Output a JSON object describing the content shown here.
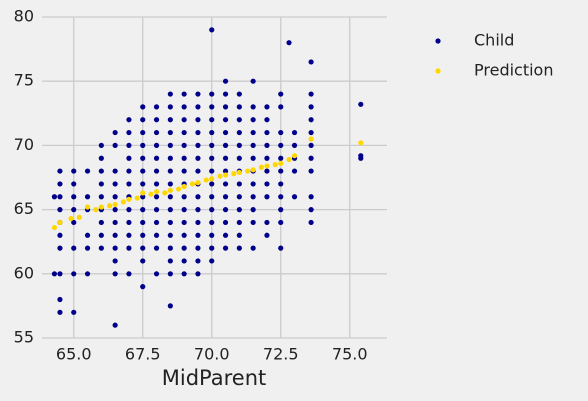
{
  "chart_data": {
    "type": "scatter",
    "xlabel": "MidParent",
    "xlim": [
      63.85,
      76.35
    ],
    "ylim": [
      55,
      80
    ],
    "xticks": [
      {
        "value": 65,
        "label": "65.0"
      },
      {
        "value": 67.5,
        "label": "67.5"
      },
      {
        "value": 70,
        "label": "70.0"
      },
      {
        "value": 72.5,
        "label": "72.5"
      },
      {
        "value": 75,
        "label": "75.0"
      }
    ],
    "yticks": [
      55,
      60,
      65,
      70,
      75,
      80
    ],
    "grid": true,
    "legend": "outside right",
    "series": [
      {
        "name": "Child",
        "color": "#00008b",
        "x": [
          64.3,
          64.3,
          64.5,
          64.5,
          64.5,
          64.5,
          64.5,
          64.5,
          64.5,
          64.5,
          64.5,
          64.5,
          65,
          65,
          65,
          65,
          65,
          65,
          65,
          65,
          65.5,
          65.5,
          65.5,
          65.5,
          65.5,
          65.5,
          66,
          66,
          66,
          66,
          66,
          66,
          66,
          66,
          66,
          66.5,
          66.5,
          66.5,
          66.5,
          66.5,
          66.5,
          66.5,
          66.5,
          66.5,
          66.5,
          66.5,
          66.5,
          67,
          67,
          67,
          67,
          67,
          67,
          67,
          67,
          67,
          67,
          67,
          67,
          67.5,
          67.5,
          67.5,
          67.5,
          67.5,
          67.5,
          67.5,
          67.5,
          67.5,
          67.5,
          67.5,
          67.5,
          67.5,
          67.5,
          68,
          68,
          68,
          68,
          68,
          68,
          68,
          68,
          68,
          68,
          68,
          68,
          68,
          68.5,
          68.5,
          68.5,
          68.5,
          68.5,
          68.5,
          68.5,
          68.5,
          68.5,
          68.5,
          68.5,
          68.5,
          68.5,
          68.5,
          68.5,
          68.5,
          69,
          69,
          69,
          69,
          69,
          69,
          69,
          69,
          69,
          69,
          69,
          69,
          69,
          69,
          69,
          69.5,
          69.5,
          69.5,
          69.5,
          69.5,
          69.5,
          69.5,
          69.5,
          69.5,
          69.5,
          69.5,
          69.5,
          69.5,
          69.5,
          69.5,
          70,
          70,
          70,
          70,
          70,
          70,
          70,
          70,
          70,
          70,
          70,
          70,
          70,
          70,
          70,
          70.5,
          70.5,
          70.5,
          70.5,
          70.5,
          70.5,
          70.5,
          70.5,
          70.5,
          70.5,
          70.5,
          70.5,
          70.5,
          70.5,
          71,
          71,
          71,
          71,
          71,
          71,
          71,
          71,
          71,
          71,
          71,
          71,
          71,
          71.5,
          71.5,
          71.5,
          71.5,
          71.5,
          71.5,
          71.5,
          71.5,
          71.5,
          71.5,
          71.5,
          71.5,
          72,
          72,
          72,
          72,
          72,
          72,
          72,
          72,
          72,
          72,
          72.5,
          72.5,
          72.5,
          72.5,
          72.5,
          72.5,
          72.5,
          72.5,
          72.5,
          72.5,
          72.5,
          72.8,
          73,
          73,
          73,
          73,
          73,
          73.6,
          73.6,
          73.6,
          73.6,
          73.6,
          73.6,
          73.6,
          73.6,
          73.6,
          73.6,
          73.6,
          75.4,
          75.4,
          75.4
        ],
        "values": [
          66,
          60,
          57,
          58,
          60,
          62,
          63,
          64,
          65,
          66,
          67,
          68,
          57,
          60,
          62,
          64,
          65,
          66,
          67,
          68,
          60,
          62,
          63,
          65,
          66,
          68,
          62,
          63,
          64,
          65,
          66,
          67,
          68,
          69,
          70,
          56,
          60,
          61,
          62,
          63,
          64,
          65,
          66,
          67,
          68,
          70,
          71,
          60,
          62,
          63,
          64,
          65,
          66,
          67,
          68,
          69,
          70,
          71,
          72,
          59,
          61,
          62,
          63,
          64,
          65,
          66,
          67,
          68,
          69,
          70,
          71,
          72,
          73,
          60,
          62,
          63,
          64,
          65,
          66,
          67,
          68,
          69,
          70,
          71,
          72,
          73,
          57.5,
          60,
          61,
          62,
          63,
          64,
          65,
          66,
          67,
          68,
          69,
          70,
          71,
          72,
          73,
          74,
          60,
          61,
          62,
          63,
          64,
          65,
          66,
          67,
          68,
          69,
          70,
          71,
          72,
          73,
          74,
          60,
          61,
          62,
          63,
          64,
          65,
          66,
          67,
          68,
          69,
          70,
          71,
          72,
          73,
          74,
          61,
          62,
          63,
          64,
          65,
          66,
          67,
          68,
          69,
          70,
          71,
          72,
          73,
          74,
          79,
          62,
          63,
          64,
          65,
          66,
          67,
          68,
          69,
          70,
          71,
          72,
          73,
          74,
          75,
          62,
          63,
          64,
          65,
          66,
          67,
          68,
          69,
          70,
          71,
          72,
          73,
          74,
          62,
          64,
          65,
          66,
          67,
          68,
          69,
          70,
          71,
          72,
          73,
          75,
          63,
          64,
          66,
          67,
          68,
          69,
          70,
          71,
          72,
          73,
          62,
          64,
          65,
          66,
          67,
          68,
          69,
          70,
          71,
          73,
          74,
          78,
          66,
          68,
          69,
          70,
          71,
          64,
          65,
          66,
          68,
          69,
          70,
          71,
          72,
          73,
          74,
          76.5,
          69,
          69.2,
          73.2
        ]
      },
      {
        "name": "Prediction",
        "color": "#ffd700",
        "x": [
          64.3,
          64.5,
          64.9,
          65.2,
          65.5,
          65.8,
          66,
          66.3,
          66.5,
          66.8,
          67,
          67.3,
          67.5,
          67.8,
          68,
          68.3,
          68.5,
          68.8,
          69,
          69.3,
          69.5,
          69.8,
          70,
          70.3,
          70.5,
          70.8,
          71,
          71.3,
          71.5,
          71.8,
          72,
          72.3,
          72.5,
          72.8,
          73,
          73.6,
          75.4
        ],
        "values": [
          63.6,
          64,
          64.3,
          64.4,
          65.2,
          65,
          65.2,
          65.3,
          65.4,
          65.6,
          65.8,
          65.9,
          66.3,
          66.2,
          66.4,
          66.3,
          66.5,
          66.6,
          66.8,
          67,
          67.1,
          67.3,
          67.4,
          67.6,
          67.7,
          67.8,
          67.9,
          68,
          68.1,
          68.3,
          68.4,
          68.5,
          68.6,
          68.9,
          69.2,
          70.5,
          70.2
        ]
      }
    ]
  }
}
